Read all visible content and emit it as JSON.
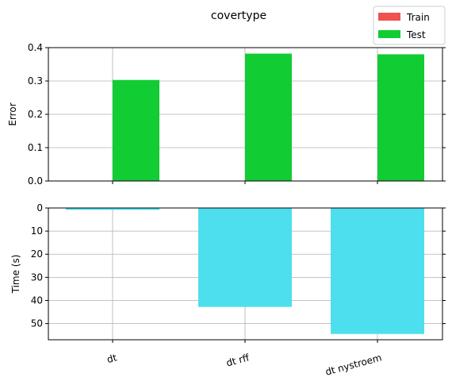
{
  "chart_data": [
    {
      "type": "bar",
      "title": "covertype",
      "categories": [
        "dt",
        "dt rff",
        "dt nystroem"
      ],
      "ylabel": "Error",
      "ylim": [
        0,
        0.4
      ],
      "yticks": [
        "0.0",
        "0.1",
        "0.2",
        "0.3",
        "0.4"
      ],
      "grid": true,
      "legend_position": "top-right",
      "series": [
        {
          "name": "Train",
          "color": "#ef5350",
          "values": [
            0,
            0,
            0
          ]
        },
        {
          "name": "Test",
          "color": "#11cc33",
          "values": [
            0.303,
            0.382,
            0.38
          ]
        }
      ]
    },
    {
      "type": "bar",
      "categories": [
        "dt",
        "dt rff",
        "dt nystroem"
      ],
      "ylabel": "Time (s)",
      "ylim": [
        0,
        57
      ],
      "y_inverted": true,
      "yticks": [
        "0",
        "10",
        "20",
        "30",
        "40",
        "50"
      ],
      "grid": true,
      "series": [
        {
          "color": "#4ddfee",
          "values": [
            0.8,
            42.8,
            54.5
          ]
        }
      ]
    }
  ]
}
